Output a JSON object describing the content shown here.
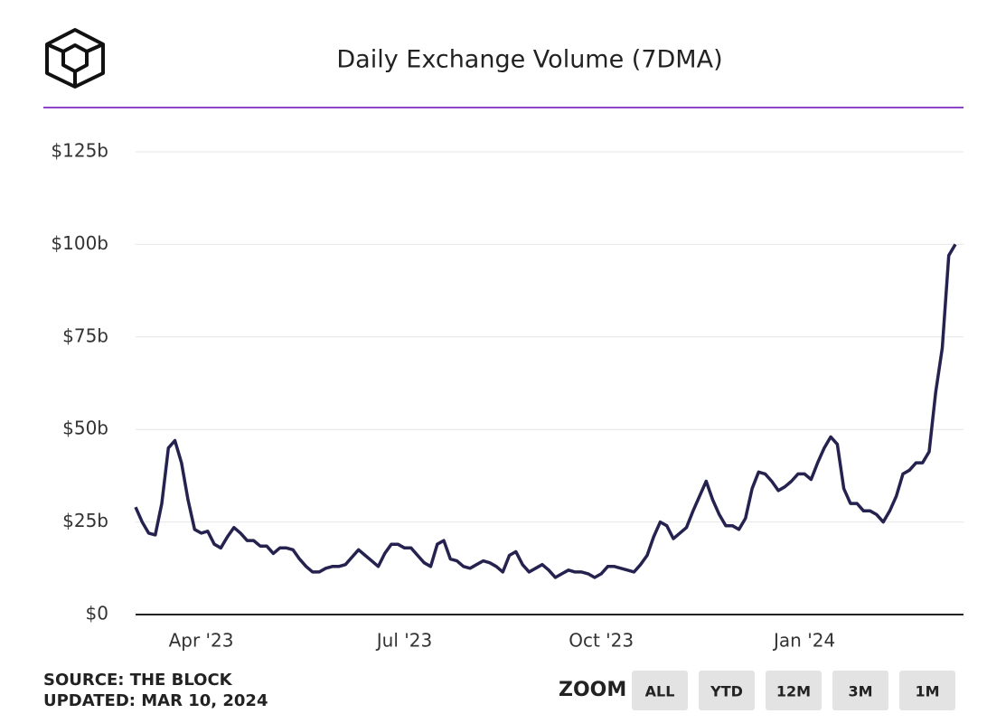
{
  "chart_data": {
    "type": "line",
    "title": "Daily Exchange Volume (7DMA)",
    "categories": [
      null,
      null,
      null,
      null,
      null,
      null,
      null,
      null,
      null,
      null,
      "Apr '23",
      null,
      null,
      null,
      null,
      null,
      null,
      null,
      null,
      null,
      null,
      null,
      null,
      null,
      null,
      null,
      null,
      null,
      null,
      null,
      null,
      null,
      null,
      null,
      null,
      null,
      null,
      null,
      null,
      null,
      null,
      "Jul '23",
      null,
      null,
      null,
      null,
      null,
      null,
      null,
      null,
      null,
      null,
      null,
      null,
      null,
      null,
      null,
      null,
      null,
      null,
      null,
      null,
      null,
      null,
      null,
      null,
      null,
      null,
      null,
      null,
      null,
      "Oct '23",
      null,
      null,
      null,
      null,
      null,
      null,
      null,
      null,
      null,
      null,
      null,
      null,
      null,
      null,
      null,
      null,
      null,
      null,
      null,
      null,
      null,
      null,
      null,
      null,
      null,
      null,
      null,
      null,
      null,
      null,
      "Jan '24",
      null,
      null,
      null,
      null,
      null,
      null,
      null,
      null,
      null,
      null,
      null,
      null,
      null,
      null,
      null,
      null,
      null,
      null,
      null,
      null,
      null,
      null,
      null
    ],
    "series": [
      {
        "color": "#25224f",
        "values": [
          29,
          25,
          22,
          21.5,
          30,
          45,
          47,
          41,
          31,
          23,
          22,
          22.5,
          19,
          18,
          21,
          23.5,
          22,
          20,
          20,
          18.5,
          18.5,
          16.5,
          18,
          18,
          17.5,
          15,
          13,
          11.5,
          11.5,
          12.5,
          13,
          13,
          13.5,
          15.5,
          17.5,
          16,
          14.5,
          13,
          16.5,
          19,
          19,
          18,
          18,
          16,
          14,
          13,
          19,
          20,
          15,
          14.5,
          13,
          12.5,
          13.5,
          14.5,
          14,
          13,
          11.5,
          16,
          17,
          13.5,
          11.5,
          12.5,
          13.5,
          12,
          10,
          11,
          12,
          11.5,
          11.5,
          11,
          10,
          11,
          13,
          13,
          12.5,
          12,
          11.5,
          13.5,
          16,
          21,
          25,
          24,
          20.5,
          22,
          23.5,
          28,
          32,
          36,
          31,
          27,
          24,
          24,
          23,
          26,
          34,
          38.5,
          38,
          36,
          33.5,
          34.5,
          36,
          38,
          38,
          36.5,
          41,
          45,
          48,
          46,
          34,
          30,
          30,
          28,
          28,
          27,
          25,
          28,
          32,
          38,
          39,
          41,
          41,
          44,
          60,
          72,
          97,
          100
        ]
      }
    ],
    "ylim": [
      0,
      125
    ],
    "yticks": [
      {
        "value": 0,
        "label": "$0"
      },
      {
        "value": 25,
        "label": "$25b"
      },
      {
        "value": 50,
        "label": "$50b"
      },
      {
        "value": 75,
        "label": "$75b"
      },
      {
        "value": 100,
        "label": "$100b"
      },
      {
        "value": 125,
        "label": "$125b"
      }
    ],
    "grid": true
  },
  "footer": {
    "source": "SOURCE: THE BLOCK",
    "updated": "UPDATED: MAR 10, 2024",
    "zoom_label": "ZOOM",
    "zoom_buttons": [
      "ALL",
      "YTD",
      "12M",
      "3M",
      "1M"
    ]
  }
}
